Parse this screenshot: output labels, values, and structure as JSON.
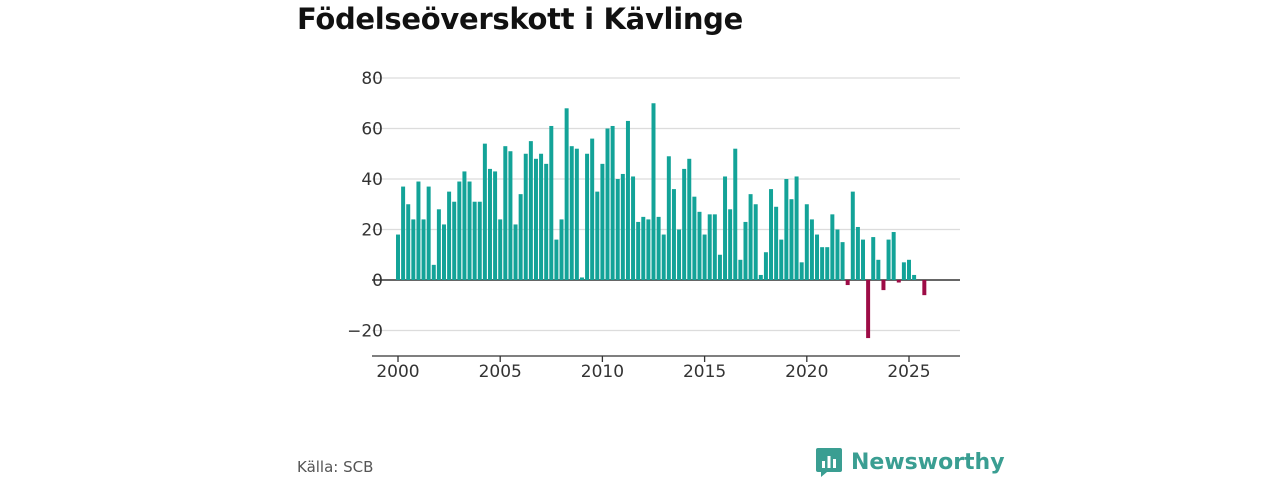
{
  "title": "Födelseöverskott i Kävlinge",
  "source": "Källa: SCB",
  "brand": "Newsworthy",
  "chart_data": {
    "type": "bar",
    "title": "Födelseöverskott i Kävlinge",
    "xlabel": "",
    "ylabel": "",
    "frequency": "quarterly",
    "x_start": 2000.0,
    "x_step": 0.25,
    "xlim": [
      1998.6,
      2027.6
    ],
    "ylim": [
      -27,
      80
    ],
    "yticks": [
      -20,
      0,
      20,
      40,
      60,
      80
    ],
    "xticks": [
      2000,
      2005,
      2010,
      2015,
      2020,
      2025
    ],
    "grid": true,
    "colors": {
      "positive": "#13a398",
      "negative": "#9d0c46"
    },
    "values": [
      18,
      37,
      30,
      24,
      39,
      24,
      37,
      6,
      28,
      22,
      35,
      31,
      39,
      43,
      39,
      31,
      31,
      54,
      44,
      43,
      24,
      53,
      51,
      22,
      34,
      50,
      55,
      48,
      50,
      46,
      61,
      16,
      24,
      68,
      53,
      52,
      1,
      50,
      56,
      35,
      46,
      60,
      61,
      40,
      42,
      63,
      41,
      23,
      25,
      24,
      70,
      25,
      18,
      49,
      36,
      20,
      44,
      48,
      33,
      27,
      18,
      26,
      26,
      10,
      41,
      28,
      52,
      8,
      23,
      34,
      30,
      2,
      11,
      36,
      29,
      16,
      40,
      32,
      41,
      7,
      30,
      24,
      18,
      13,
      13,
      26,
      20,
      15,
      -2,
      35,
      21,
      16,
      -23,
      17,
      8,
      -4,
      16,
      19,
      -1,
      7,
      8,
      2,
      0,
      -6
    ]
  }
}
